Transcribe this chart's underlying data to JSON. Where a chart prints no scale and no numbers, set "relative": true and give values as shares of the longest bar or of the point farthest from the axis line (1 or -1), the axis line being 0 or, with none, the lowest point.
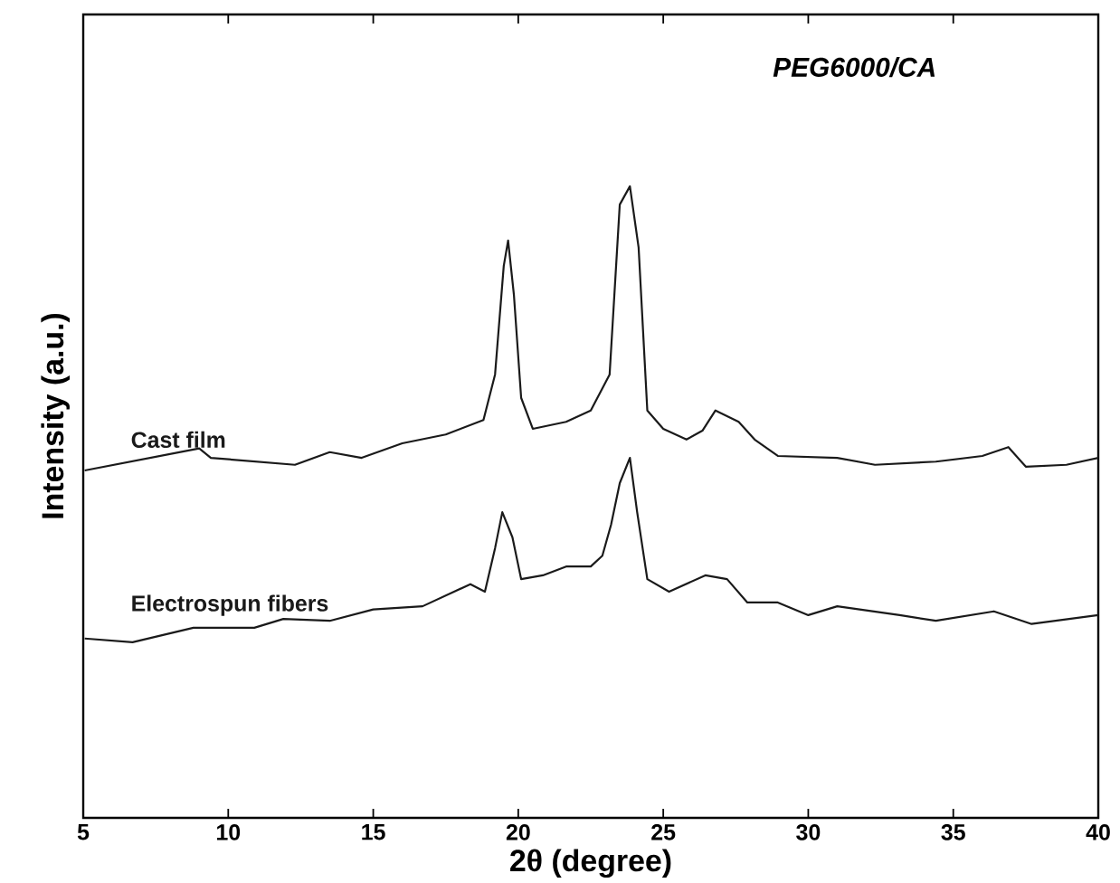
{
  "chart_data": {
    "type": "line",
    "title": "PEG6000/CA",
    "xlabel": "2θ (degree)",
    "ylabel": "Intensity (a.u.)",
    "relative": true,
    "xlim": [
      5,
      40
    ],
    "xticks": [
      5,
      10,
      15,
      20,
      25,
      30,
      35,
      40
    ],
    "tick_labels": "x",
    "grid": false,
    "marker": "none",
    "line_style": "solid",
    "series": [
      {
        "name": "Cast film",
        "color": "#1a1a1a",
        "x": [
          5.05,
          9.0,
          9.4,
          12.3,
          13.5,
          14.6,
          16.0,
          17.5,
          18.8,
          19.2,
          19.5,
          19.65,
          19.85,
          20.1,
          20.5,
          21.65,
          22.5,
          23.15,
          23.5,
          23.85,
          24.15,
          24.45,
          25.0,
          25.8,
          26.35,
          26.8,
          27.6,
          28.15,
          28.95,
          31.0,
          32.3,
          34.4,
          36.0,
          36.9,
          37.5,
          38.9,
          40.0
        ],
        "values": [
          0.55,
          0.585,
          0.57,
          0.559,
          0.579,
          0.57,
          0.593,
          0.607,
          0.63,
          0.702,
          0.874,
          0.914,
          0.828,
          0.665,
          0.616,
          0.627,
          0.645,
          0.702,
          0.971,
          1.0,
          0.903,
          0.645,
          0.616,
          0.599,
          0.613,
          0.645,
          0.627,
          0.599,
          0.573,
          0.57,
          0.559,
          0.564,
          0.573,
          0.587,
          0.556,
          0.559,
          0.57
        ]
      },
      {
        "name": "Electrospun fibers",
        "color": "#1a1a1a",
        "x": [
          5.05,
          6.7,
          8.8,
          10.9,
          11.9,
          13.5,
          15.0,
          16.7,
          18.35,
          18.85,
          19.2,
          19.45,
          19.8,
          20.1,
          20.85,
          21.65,
          22.5,
          22.9,
          23.2,
          23.5,
          23.85,
          24.1,
          24.45,
          25.2,
          26.45,
          27.2,
          27.9,
          28.95,
          30.0,
          31.0,
          33.15,
          34.4,
          36.4,
          37.7,
          40.0
        ],
        "values": [
          0.284,
          0.278,
          0.301,
          0.301,
          0.315,
          0.312,
          0.33,
          0.335,
          0.37,
          0.358,
          0.427,
          0.484,
          0.444,
          0.378,
          0.384,
          0.398,
          0.398,
          0.415,
          0.464,
          0.53,
          0.57,
          0.484,
          0.378,
          0.358,
          0.384,
          0.378,
          0.341,
          0.341,
          0.321,
          0.335,
          0.321,
          0.312,
          0.327,
          0.307,
          0.321
        ]
      }
    ]
  }
}
